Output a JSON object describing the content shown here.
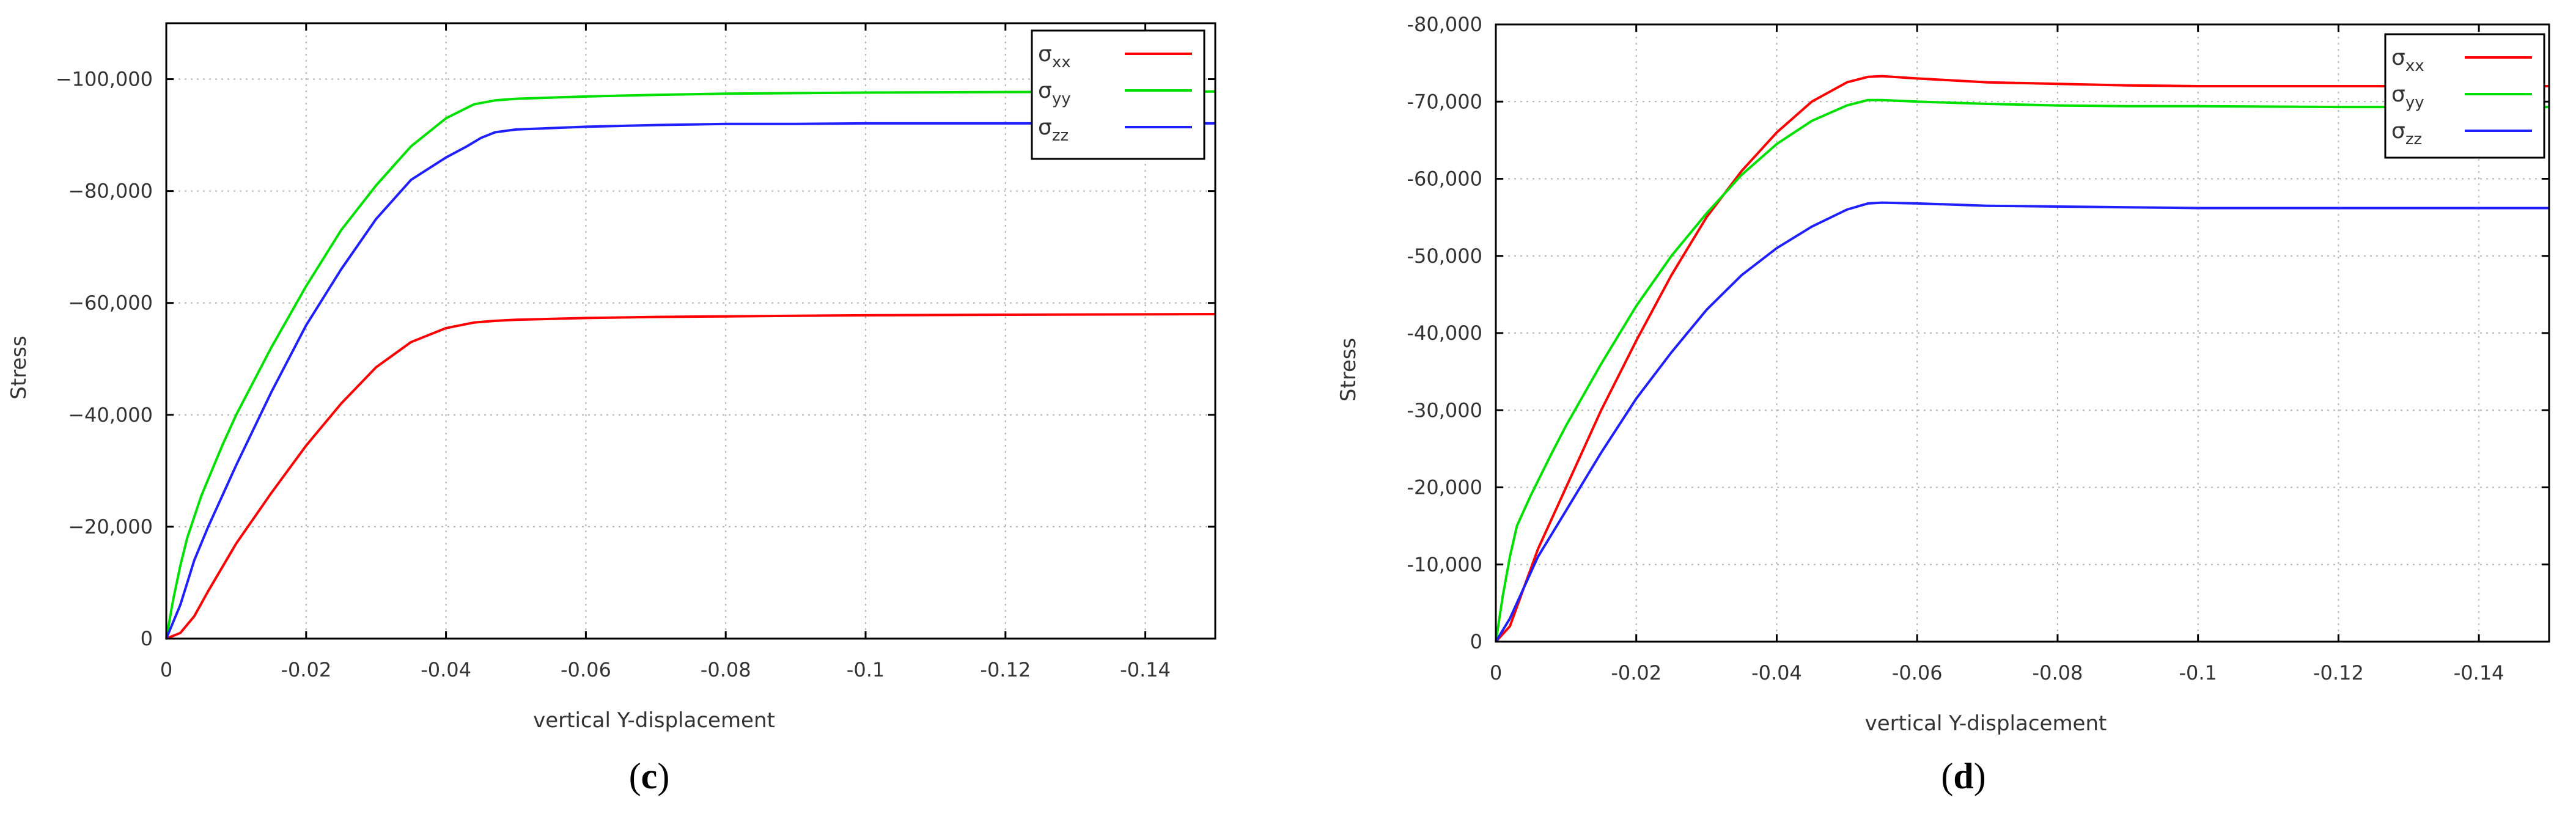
{
  "chart_data": [
    {
      "type": "line",
      "panel_label": "c",
      "xlabel": "vertical Y-displacement",
      "ylabel": "Stress",
      "xlim": [
        0,
        -0.15
      ],
      "ylim": [
        0,
        -110000
      ],
      "grid": true,
      "legend_position": "top-right",
      "x_ticks": [
        0,
        -0.02,
        -0.04,
        -0.06,
        -0.08,
        -0.1,
        -0.12,
        -0.14
      ],
      "x_tick_labels": [
        "0",
        "-0.02",
        "-0.04",
        "-0.06",
        "-0.08",
        "-0.1",
        "-0.12",
        "-0.14"
      ],
      "y_ticks": [
        0,
        -20000,
        -40000,
        -60000,
        -80000,
        -100000
      ],
      "y_tick_labels": [
        "0",
        "−20,000",
        "−40,000",
        "−60,000",
        "−80,000",
        "−100,000"
      ],
      "series": [
        {
          "name": "σ",
          "subscript": "xx",
          "color": "#ff0000",
          "x": [
            0,
            -0.002,
            -0.004,
            -0.006,
            -0.01,
            -0.015,
            -0.02,
            -0.025,
            -0.03,
            -0.035,
            -0.04,
            -0.044,
            -0.047,
            -0.05,
            -0.06,
            -0.07,
            -0.08,
            -0.09,
            -0.1,
            -0.12,
            -0.15
          ],
          "y": [
            0,
            -1000,
            -4000,
            -8500,
            -17000,
            -26000,
            -34500,
            -42000,
            -48500,
            -53000,
            -55500,
            -56500,
            -56800,
            -57000,
            -57300,
            -57500,
            -57600,
            -57700,
            -57800,
            -57900,
            -58000
          ]
        },
        {
          "name": "σ",
          "subscript": "yy",
          "color": "#00e000",
          "x": [
            0,
            -0.001,
            -0.002,
            -0.003,
            -0.005,
            -0.008,
            -0.01,
            -0.015,
            -0.02,
            -0.025,
            -0.03,
            -0.035,
            -0.04,
            -0.044,
            -0.047,
            -0.05,
            -0.06,
            -0.07,
            -0.08,
            -0.09,
            -0.1,
            -0.12,
            -0.15
          ],
          "y": [
            0,
            -7000,
            -13000,
            -18000,
            -25500,
            -34500,
            -40000,
            -52000,
            -63000,
            -73000,
            -81000,
            -88000,
            -93000,
            -95500,
            -96200,
            -96500,
            -96900,
            -97200,
            -97400,
            -97500,
            -97600,
            -97700,
            -97800
          ]
        },
        {
          "name": "σ",
          "subscript": "zz",
          "color": "#2020ff",
          "x": [
            0,
            -0.002,
            -0.004,
            -0.006,
            -0.01,
            -0.015,
            -0.02,
            -0.025,
            -0.03,
            -0.035,
            -0.04,
            -0.043,
            -0.045,
            -0.047,
            -0.05,
            -0.06,
            -0.07,
            -0.08,
            -0.09,
            -0.1,
            -0.12,
            -0.15
          ],
          "y": [
            0,
            -6000,
            -14000,
            -20000,
            -31000,
            -44000,
            -56000,
            -66000,
            -75000,
            -82000,
            -86000,
            -88000,
            -89500,
            -90500,
            -91000,
            -91500,
            -91800,
            -92000,
            -92000,
            -92100,
            -92100,
            -92100
          ]
        }
      ]
    },
    {
      "type": "line",
      "panel_label": "d",
      "xlabel": "vertical Y-displacement",
      "ylabel": "Stress",
      "xlim": [
        0,
        -0.15
      ],
      "ylim": [
        0,
        -80000
      ],
      "grid": true,
      "legend_position": "top-right",
      "x_ticks": [
        0,
        -0.02,
        -0.04,
        -0.06,
        -0.08,
        -0.1,
        -0.12,
        -0.14
      ],
      "x_tick_labels": [
        "0",
        "-0.02",
        "-0.04",
        "-0.06",
        "-0.08",
        "-0.1",
        "-0.12",
        "-0.14"
      ],
      "y_ticks": [
        0,
        -10000,
        -20000,
        -30000,
        -40000,
        -50000,
        -60000,
        -70000,
        -80000
      ],
      "y_tick_labels": [
        "0",
        "-10,000",
        "-20,000",
        "-30,000",
        "-40,000",
        "-50,000",
        "-60,000",
        "-70,000",
        "-80,000"
      ],
      "series": [
        {
          "name": "σ",
          "subscript": "xx",
          "color": "#ff0000",
          "x": [
            0,
            -0.002,
            -0.004,
            -0.006,
            -0.01,
            -0.015,
            -0.02,
            -0.025,
            -0.03,
            -0.035,
            -0.04,
            -0.045,
            -0.05,
            -0.053,
            -0.055,
            -0.06,
            -0.07,
            -0.08,
            -0.09,
            -0.1,
            -0.12,
            -0.15
          ],
          "y": [
            0,
            -2000,
            -7000,
            -12000,
            -20000,
            -30000,
            -39000,
            -47500,
            -55000,
            -61000,
            -66000,
            -70000,
            -72500,
            -73200,
            -73300,
            -73000,
            -72500,
            -72300,
            -72100,
            -72000,
            -72000,
            -72000
          ]
        },
        {
          "name": "σ",
          "subscript": "yy",
          "color": "#00e000",
          "x": [
            0,
            -0.001,
            -0.002,
            -0.003,
            -0.005,
            -0.008,
            -0.01,
            -0.015,
            -0.02,
            -0.025,
            -0.03,
            -0.035,
            -0.04,
            -0.045,
            -0.05,
            -0.053,
            -0.055,
            -0.06,
            -0.07,
            -0.08,
            -0.09,
            -0.1,
            -0.12,
            -0.15
          ],
          "y": [
            0,
            -6000,
            -11000,
            -15000,
            -19000,
            -24500,
            -28000,
            -36000,
            -43500,
            -50000,
            -55500,
            -60500,
            -64500,
            -67500,
            -69500,
            -70200,
            -70200,
            -70000,
            -69700,
            -69500,
            -69400,
            -69400,
            -69300,
            -69300
          ]
        },
        {
          "name": "σ",
          "subscript": "zz",
          "color": "#2020ff",
          "x": [
            0,
            -0.002,
            -0.004,
            -0.006,
            -0.01,
            -0.015,
            -0.02,
            -0.025,
            -0.03,
            -0.035,
            -0.04,
            -0.045,
            -0.05,
            -0.053,
            -0.055,
            -0.06,
            -0.07,
            -0.08,
            -0.09,
            -0.1,
            -0.12,
            -0.15
          ],
          "y": [
            0,
            -3000,
            -7000,
            -11000,
            -17000,
            -24500,
            -31500,
            -37500,
            -43000,
            -47500,
            -51000,
            -53800,
            -56000,
            -56800,
            -56900,
            -56800,
            -56500,
            -56400,
            -56300,
            -56200,
            -56200,
            -56200
          ]
        }
      ]
    }
  ]
}
